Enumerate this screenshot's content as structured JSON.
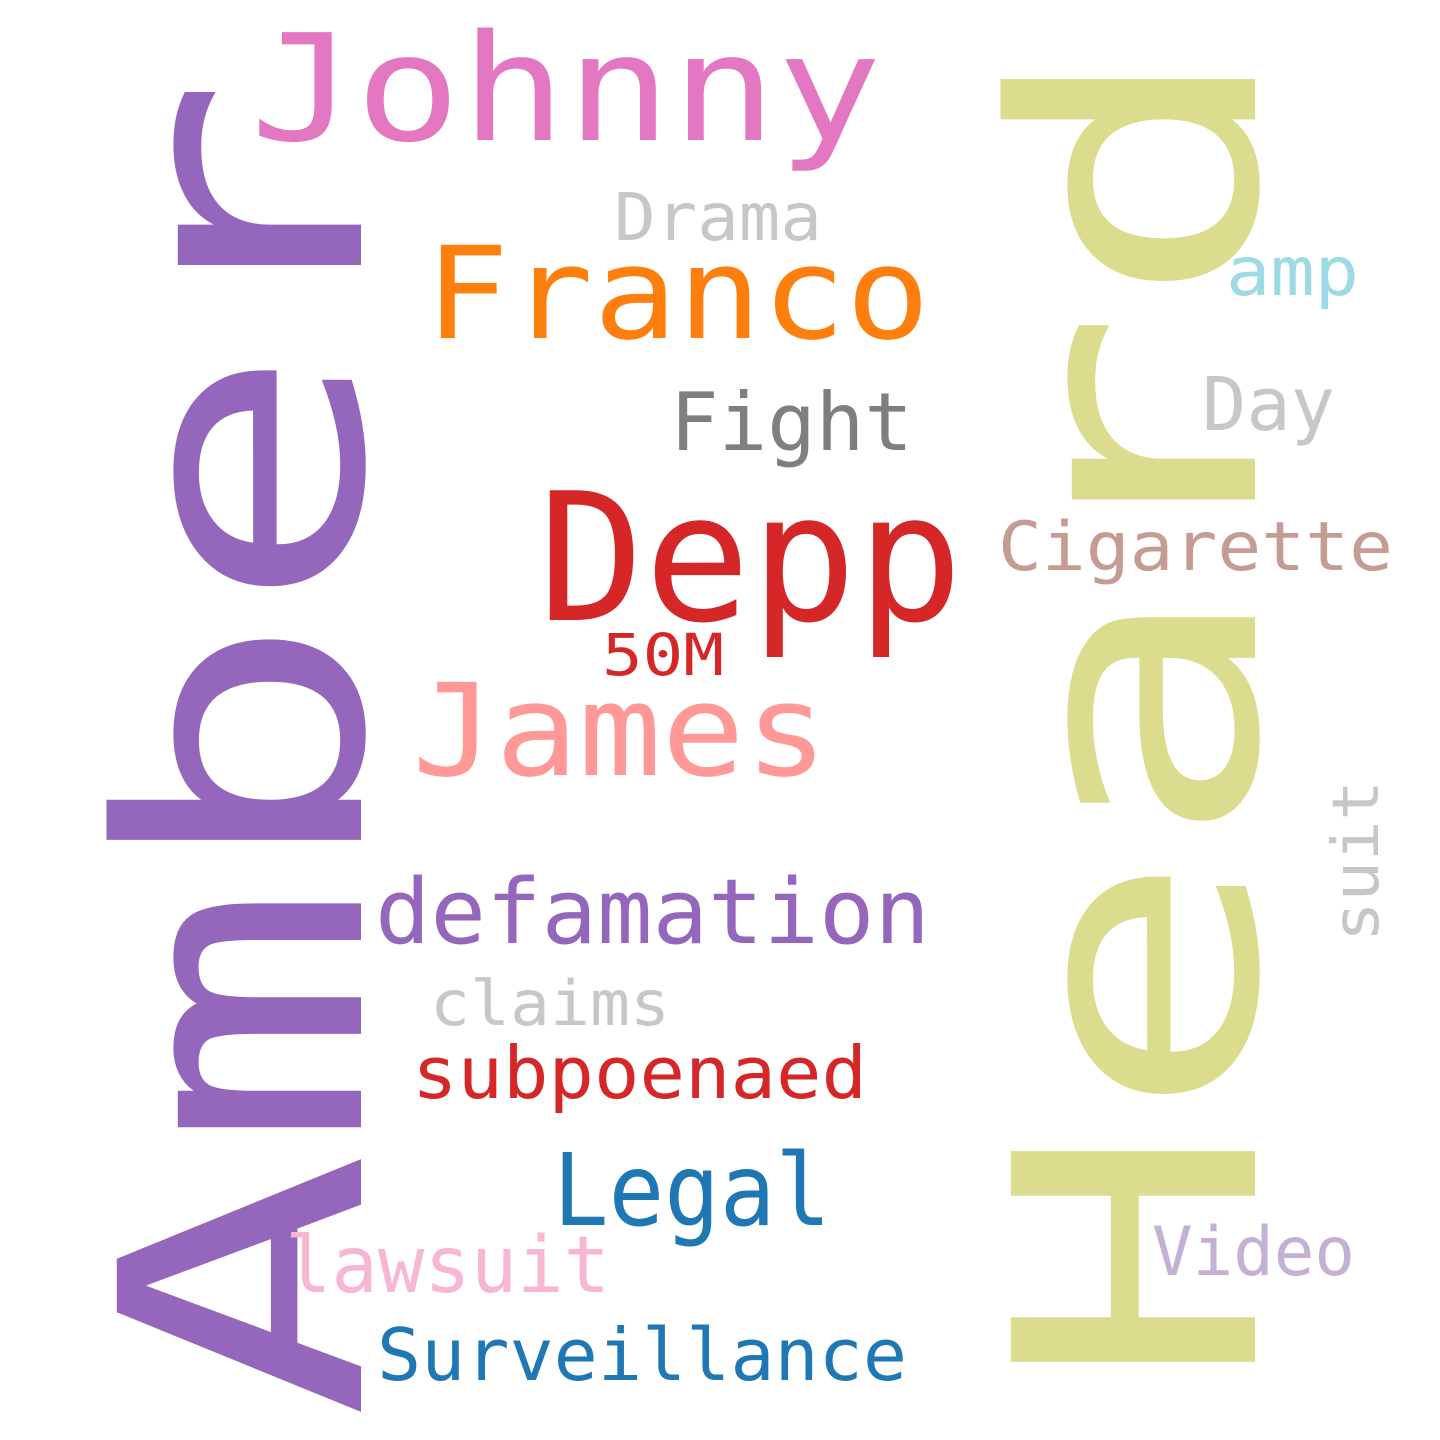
{
  "words": [
    {
      "text": "Amber",
      "color": "#9467bd",
      "rotated": true
    },
    {
      "text": "Heard",
      "color": "#dbdc8d",
      "rotated": true
    },
    {
      "text": "Johnny",
      "color": "#e377c2",
      "rotated": false
    },
    {
      "text": "Drama",
      "color": "#c7c7c7",
      "rotated": false
    },
    {
      "text": "Franco",
      "color": "#ff7f0e",
      "rotated": false
    },
    {
      "text": "amp",
      "color": "#9edae5",
      "rotated": false
    },
    {
      "text": "Fight",
      "color": "#7f7f7f",
      "rotated": false
    },
    {
      "text": "Day",
      "color": "#c7c7c7",
      "rotated": false
    },
    {
      "text": "Depp",
      "color": "#d62728",
      "rotated": false
    },
    {
      "text": "Cigarette",
      "color": "#c49c94",
      "rotated": false
    },
    {
      "text": "50M",
      "color": "#d62728",
      "rotated": false
    },
    {
      "text": "James",
      "color": "#ff9896",
      "rotated": false
    },
    {
      "text": "suit",
      "color": "#c7c7c7",
      "rotated": true
    },
    {
      "text": "defamation",
      "color": "#9467bd",
      "rotated": false
    },
    {
      "text": "claims",
      "color": "#c7c7c7",
      "rotated": false
    },
    {
      "text": "subpoenaed",
      "color": "#d62728",
      "rotated": false
    },
    {
      "text": "Legal",
      "color": "#1f77b4",
      "rotated": false
    },
    {
      "text": "lawsuit",
      "color": "#f7b6d2",
      "rotated": false
    },
    {
      "text": "Video",
      "color": "#c5b0d5",
      "rotated": false
    },
    {
      "text": "Surveillance",
      "color": "#1f77b4",
      "rotated": false
    }
  ]
}
